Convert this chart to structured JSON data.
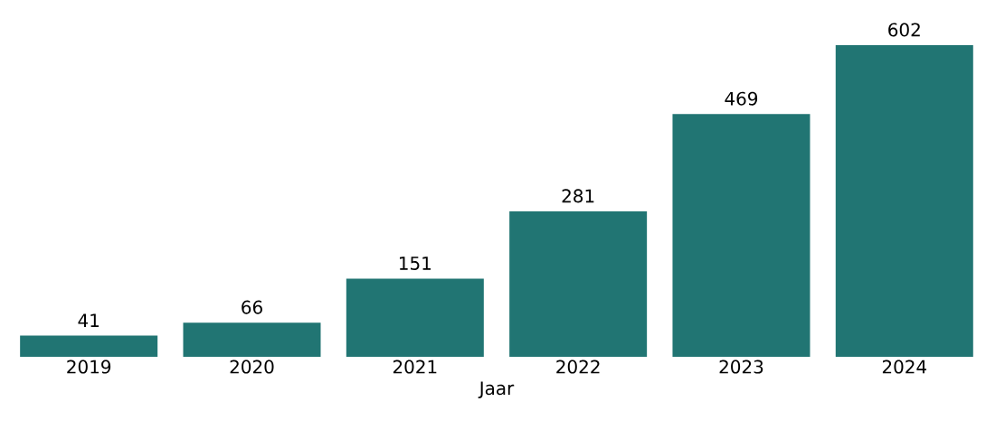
{
  "chart_data": {
    "type": "bar",
    "xlabel": "Jaar",
    "categories": [
      "2019",
      "2020",
      "2021",
      "2022",
      "2023",
      "2024"
    ],
    "values": [
      41,
      66,
      151,
      281,
      469,
      602
    ],
    "color": "#217573",
    "data_labels": true
  }
}
